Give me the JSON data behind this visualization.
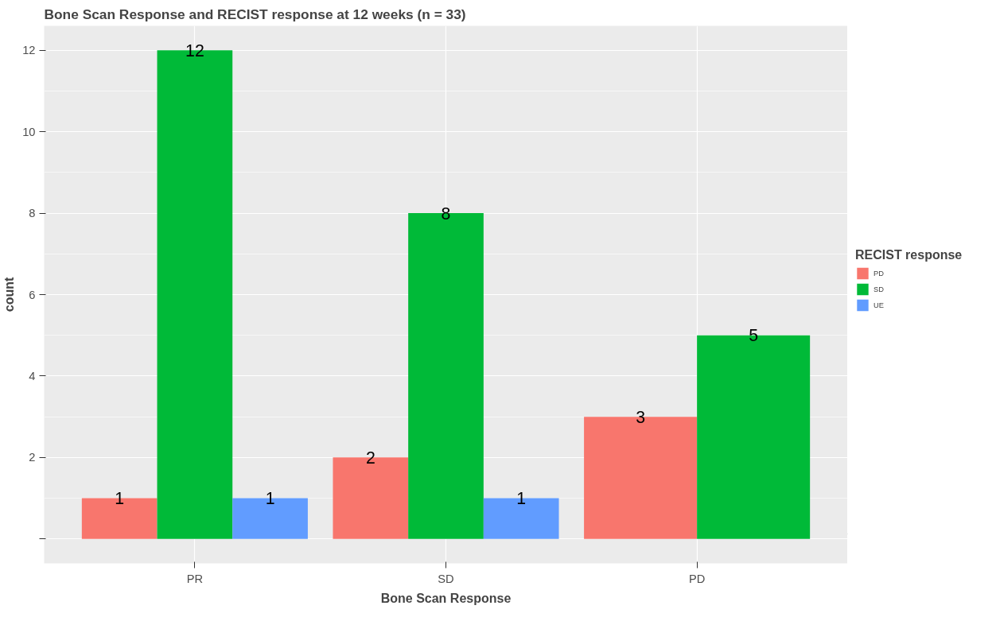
{
  "chart_data": {
    "type": "bar",
    "title": "Bone Scan Response and RECIST response at 12 weeks (n = 33)",
    "xlabel": "Bone Scan Response",
    "ylabel": "count",
    "legend_title": "RECIST response",
    "categories": [
      "PR",
      "SD",
      "PD"
    ],
    "series": [
      {
        "name": "PD",
        "color": "#f8766d",
        "values": [
          1,
          2,
          3
        ]
      },
      {
        "name": "SD",
        "color": "#00ba38",
        "values": [
          12,
          8,
          5
        ]
      },
      {
        "name": "UE",
        "color": "#619cff",
        "values": [
          1,
          1,
          null
        ]
      }
    ],
    "ylim": [
      -0.6,
      12.6
    ],
    "yticks": [
      {
        "value": 0,
        "label": null
      },
      2,
      4,
      6,
      8,
      10,
      12
    ],
    "grid": true,
    "legend": "right",
    "data_labels": true
  }
}
